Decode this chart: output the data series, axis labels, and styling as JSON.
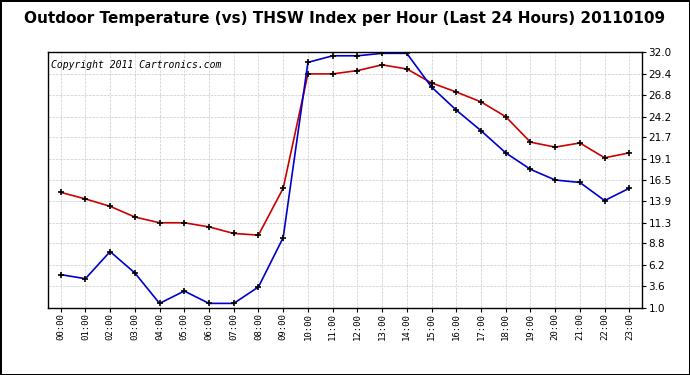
{
  "title": "Outdoor Temperature (vs) THSW Index per Hour (Last 24 Hours) 20110109",
  "copyright": "Copyright 2011 Cartronics.com",
  "hours": [
    "00:00",
    "01:00",
    "02:00",
    "03:00",
    "04:00",
    "05:00",
    "06:00",
    "07:00",
    "08:00",
    "09:00",
    "10:00",
    "11:00",
    "12:00",
    "13:00",
    "14:00",
    "15:00",
    "16:00",
    "17:00",
    "18:00",
    "19:00",
    "20:00",
    "21:00",
    "22:00",
    "23:00"
  ],
  "red_temp": [
    15.0,
    14.2,
    13.3,
    12.0,
    11.3,
    11.3,
    10.8,
    10.0,
    9.8,
    15.5,
    29.4,
    29.4,
    29.8,
    30.5,
    30.0,
    28.3,
    27.2,
    26.0,
    24.2,
    21.1,
    20.5,
    21.0,
    19.2,
    19.8
  ],
  "blue_thsw": [
    5.0,
    4.5,
    7.8,
    5.2,
    1.5,
    3.0,
    1.5,
    1.5,
    3.5,
    9.5,
    30.8,
    31.6,
    31.6,
    31.9,
    31.9,
    27.8,
    25.0,
    22.5,
    19.8,
    17.8,
    16.5,
    16.2,
    14.0,
    15.5
  ],
  "yticks": [
    1.0,
    3.6,
    6.2,
    8.8,
    11.3,
    13.9,
    16.5,
    19.1,
    21.7,
    24.2,
    26.8,
    29.4,
    32.0
  ],
  "ylim": [
    1.0,
    32.0
  ],
  "red_color": "#cc0000",
  "blue_color": "#0000cc",
  "bg_color": "#ffffff",
  "grid_color": "#bbbbbb",
  "title_fontsize": 11,
  "copyright_fontsize": 7
}
